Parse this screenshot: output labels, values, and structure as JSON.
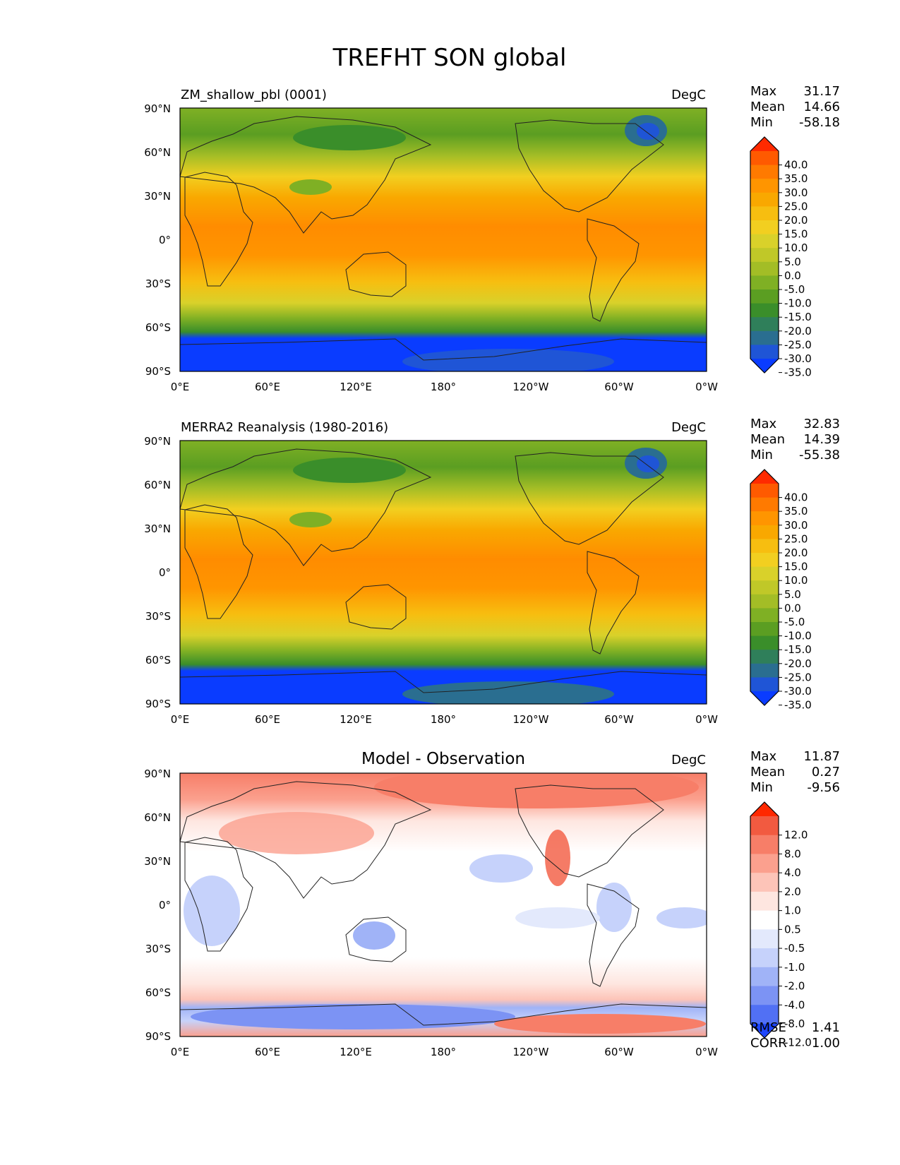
{
  "figure_title": "TREFHT SON global",
  "lat_ticks": [
    "90°N",
    "60°N",
    "30°N",
    "0°",
    "30°S",
    "60°S",
    "90°S"
  ],
  "lon_ticks": [
    "0°E",
    "60°E",
    "120°E",
    "180°",
    "120°W",
    "60°W",
    "0°W"
  ],
  "panels": [
    {
      "id": "model",
      "title": "ZM_shallow_pbl (0001)",
      "units": "DegC",
      "stats": [
        {
          "label": "Max",
          "value": "31.17"
        },
        {
          "label": "Mean",
          "value": "14.66"
        },
        {
          "label": "Min",
          "value": "-58.18"
        }
      ],
      "colorbar": {
        "labels": [
          "40.0",
          "35.0",
          "30.0",
          "25.0",
          "20.0",
          "15.0",
          "10.0",
          "5.0",
          "0.0",
          "-5.0",
          "-10.0",
          "-15.0",
          "-20.0",
          "-25.0",
          "-30.0",
          "-35.0"
        ],
        "colors": [
          "#ff2a00",
          "#ff5a00",
          "#ff7a00",
          "#ff9500",
          "#f9a800",
          "#f7be10",
          "#f2cf20",
          "#d9d12a",
          "#c0c828",
          "#a3bd26",
          "#7fb024",
          "#5b9e22",
          "#3a8e2a",
          "#2f7f5a",
          "#2a6e90",
          "#1f55d6",
          "#0a3cff"
        ]
      }
    },
    {
      "id": "obs",
      "title": "MERRA2 Reanalysis (1980-2016)",
      "units": "DegC",
      "stats": [
        {
          "label": "Max",
          "value": "32.83"
        },
        {
          "label": "Mean",
          "value": "14.39"
        },
        {
          "label": "Min",
          "value": "-55.38"
        }
      ],
      "colorbar": {
        "labels": [
          "40.0",
          "35.0",
          "30.0",
          "25.0",
          "20.0",
          "15.0",
          "10.0",
          "5.0",
          "0.0",
          "-5.0",
          "-10.0",
          "-15.0",
          "-20.0",
          "-25.0",
          "-30.0",
          "-35.0"
        ],
        "colors": [
          "#ff2a00",
          "#ff5a00",
          "#ff7a00",
          "#ff9500",
          "#f9a800",
          "#f7be10",
          "#f2cf20",
          "#d9d12a",
          "#c0c828",
          "#a3bd26",
          "#7fb024",
          "#5b9e22",
          "#3a8e2a",
          "#2f7f5a",
          "#2a6e90",
          "#1f55d6",
          "#0a3cff"
        ]
      }
    },
    {
      "id": "diff",
      "title": "Model - Observation",
      "units": "DegC",
      "stats": [
        {
          "label": "Max",
          "value": "11.87"
        },
        {
          "label": "Mean",
          "value": "0.27"
        },
        {
          "label": "Min",
          "value": "-9.56"
        }
      ],
      "colorbar": {
        "labels": [
          "12.0",
          "8.0",
          "4.0",
          "2.0",
          "1.0",
          "0.5",
          "-0.5",
          "-1.0",
          "-2.0",
          "-4.0",
          "-8.0",
          "-12.0"
        ],
        "colors": [
          "#ff2800",
          "#f25a40",
          "#f77e68",
          "#fba08e",
          "#fdc4b8",
          "#fee6e0",
          "#ffffff",
          "#e3e9fc",
          "#c6d2fb",
          "#a0b3f7",
          "#7c93f4",
          "#5170f4",
          "#1e46ff"
        ]
      },
      "metrics": [
        {
          "label": "RMSE",
          "value": "1.41"
        },
        {
          "label": "CORR",
          "value": "1.00"
        }
      ]
    }
  ]
}
